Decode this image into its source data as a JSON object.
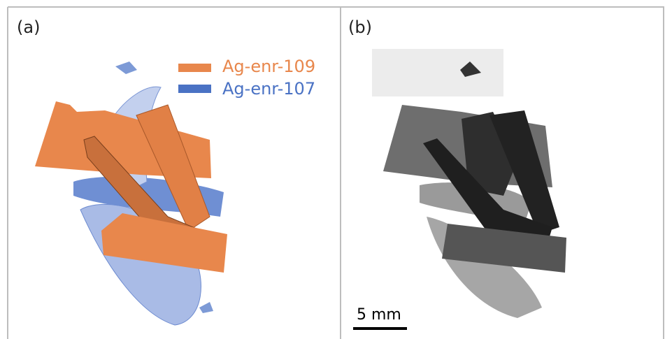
{
  "panels": [
    {
      "label": "(a)",
      "legend": [
        {
          "name": "Ag-enr-109",
          "color": "#e8874c"
        },
        {
          "name": "Ag-enr-107",
          "color": "#4a72c4"
        }
      ]
    },
    {
      "label": "(b)",
      "scale_bar": "5 mm"
    }
  ]
}
